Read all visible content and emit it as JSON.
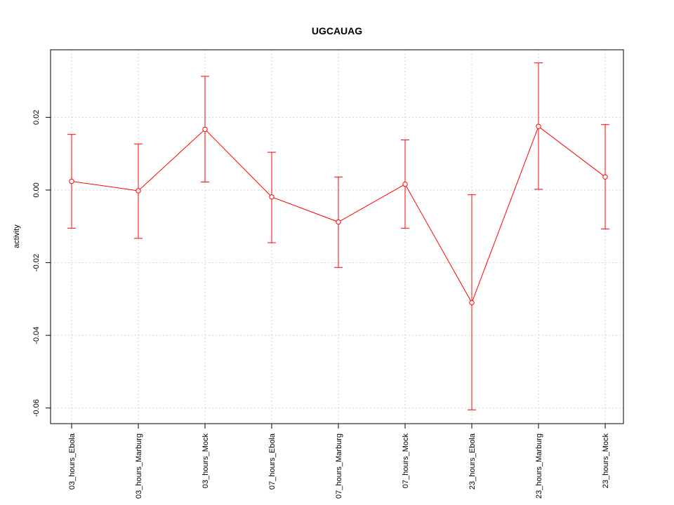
{
  "chart_data": {
    "type": "line",
    "title": "UGCAUAG",
    "xlabel": "",
    "ylabel": "activity",
    "categories": [
      "03_hours_Ebola",
      "03_hours_Marburg",
      "03_hours_Mock",
      "07_hours_Ebola",
      "07_hours_Marburg",
      "07_hours_Mock",
      "23_hours_Ebola",
      "23_hours_Marburg",
      "23_hours_Mock"
    ],
    "series": [
      {
        "values": [
          0.0024,
          -0.0002,
          0.0167,
          -0.0019,
          -0.0088,
          0.0016,
          -0.031,
          0.0175,
          0.0036
        ],
        "lower": [
          -0.0105,
          -0.0133,
          0.0022,
          -0.0145,
          -0.0213,
          -0.0105,
          -0.0605,
          0.0002,
          -0.0107
        ],
        "upper": [
          0.0153,
          0.0127,
          0.0313,
          0.0104,
          0.0036,
          0.0138,
          -0.0013,
          0.035,
          0.018
        ]
      }
    ],
    "yticks": [
      -0.06,
      -0.04,
      -0.02,
      0.0,
      0.02
    ],
    "ytick_labels": [
      "-0.06",
      "-0.04",
      "-0.02",
      "0.00",
      "0.02"
    ],
    "ylim": [
      -0.0643,
      0.0386
    ],
    "grid": true,
    "color": "#ff0000"
  }
}
